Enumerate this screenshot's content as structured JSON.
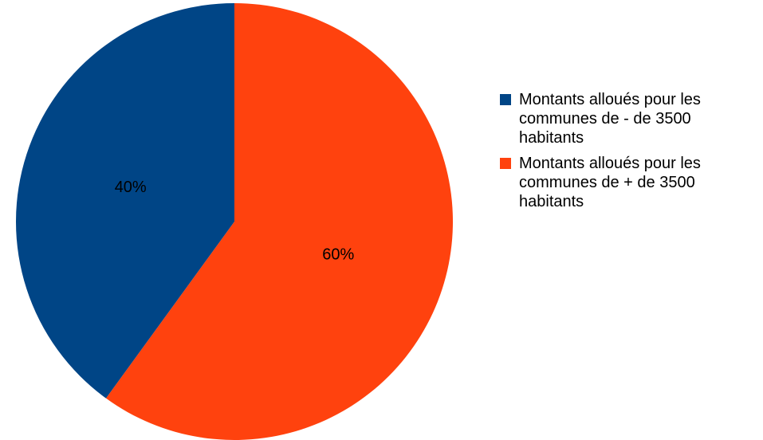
{
  "chart_data": {
    "type": "pie",
    "categories": [
      "Montants alloués pour les communes de - de 3500 habitants",
      "Montants alloués pour les communes de + de 3500 habitants"
    ],
    "values": [
      40,
      60
    ],
    "data_labels": [
      "40%",
      "60%"
    ],
    "colors": [
      "#004586",
      "#ff420e"
    ],
    "legend_placement": "right"
  },
  "legend": {
    "items": [
      {
        "label": "Montants alloués pour les communes de - de 3500 habitants",
        "color": "#004586"
      },
      {
        "label": "Montants alloués pour les communes de + de 3500 habitants",
        "color": "#ff420e"
      }
    ]
  }
}
